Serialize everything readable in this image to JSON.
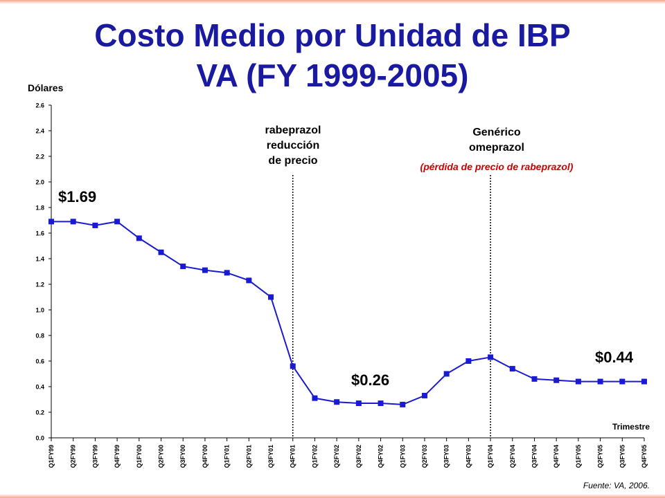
{
  "title_line1": "Costo Medio por Unidad de IBP",
  "title_line2": "VA (FY 1999-2005)",
  "source": "Fuente: VA, 2006.",
  "colors": {
    "title": "#1a1aa0",
    "series": "#1a1ad0",
    "accent": "#cc0000"
  },
  "chart_data": {
    "type": "line",
    "ylabel": "Dólares",
    "xlabel": "Trimestre",
    "ylim": [
      0,
      2.6
    ],
    "yticks": [
      "0.0",
      "0.2",
      "0.4",
      "0.6",
      "0.8",
      "1.0",
      "1.2",
      "1.4",
      "1.6",
      "1.8",
      "2.0",
      "2.2",
      "2.4",
      "2.6"
    ],
    "categories": [
      "Q1FY99",
      "Q2FY99",
      "Q3FY99",
      "Q4FY99",
      "Q1FY00",
      "Q2FY00",
      "Q3FY00",
      "Q4FY00",
      "Q1FY01",
      "Q2FY01",
      "Q3FY01",
      "Q4FY01",
      "Q1FY02",
      "Q2FY02",
      "Q3FY02",
      "Q4FY02",
      "Q1FY03",
      "Q2FY03",
      "Q3FY03",
      "Q4FY03",
      "Q1FY04",
      "Q2FY04",
      "Q3FY04",
      "Q4FY04",
      "Q1FY05",
      "Q2FY05",
      "Q3FY05",
      "Q4FY05"
    ],
    "series": [
      {
        "values": [
          1.69,
          1.69,
          1.66,
          1.69,
          1.56,
          1.45,
          1.34,
          1.31,
          1.29,
          1.23,
          1.1,
          0.56,
          0.31,
          0.28,
          0.27,
          0.27,
          0.26,
          0.33,
          0.5,
          0.6,
          0.63,
          0.54,
          0.46,
          0.45,
          0.44,
          0.44,
          0.44,
          0.44
        ]
      }
    ],
    "grid": false,
    "annotations": [
      {
        "text": "$1.69",
        "category": "Q1FY99"
      },
      {
        "text": "$0.26",
        "category": "Q3FY02"
      },
      {
        "text": "$0.44",
        "category": "Q4FY05"
      }
    ],
    "reference_lines": [
      {
        "category": "Q4FY01",
        "label_lines": [
          "rabeprazol",
          "reducción",
          "de precio"
        ]
      },
      {
        "category": "Q1FY04",
        "label_lines": [
          "Genérico",
          "omeprazol"
        ],
        "sub_label": "(pérdida de precio de rabeprazol)"
      }
    ]
  }
}
